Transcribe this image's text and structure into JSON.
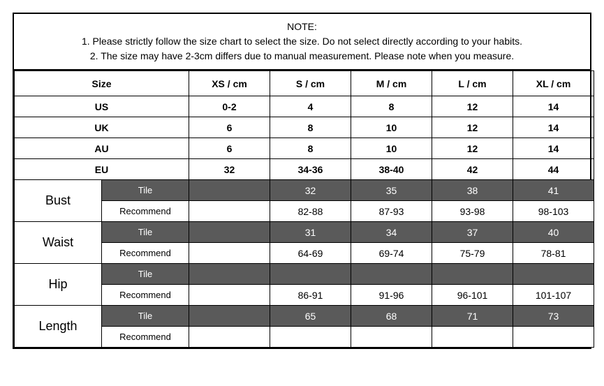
{
  "note": {
    "title": "NOTE:",
    "line1": "1. Please strictly follow the size chart  to select the size. Do not select directly according to your habits.",
    "line2": "2. The size may have 2-3cm differs due to manual measurement. Please note when you measure."
  },
  "headers": {
    "size": "Size",
    "cols": [
      "XS / cm",
      "S / cm",
      "M / cm",
      "L / cm",
      "XL / cm"
    ]
  },
  "regions": [
    {
      "label": "US",
      "values": [
        "0-2",
        "4",
        "8",
        "12",
        "14"
      ]
    },
    {
      "label": "UK",
      "values": [
        "6",
        "8",
        "10",
        "12",
        "14"
      ]
    },
    {
      "label": "AU",
      "values": [
        "6",
        "8",
        "10",
        "12",
        "14"
      ]
    },
    {
      "label": "EU",
      "values": [
        "32",
        "34-36",
        "38-40",
        "42",
        "44"
      ]
    }
  ],
  "measurements": [
    {
      "label": "Bust",
      "tile": [
        "",
        "32",
        "35",
        "38",
        "41"
      ],
      "recommend": [
        "",
        "82-88",
        "87-93",
        "93-98",
        "98-103"
      ]
    },
    {
      "label": "Waist",
      "tile": [
        "",
        "31",
        "34",
        "37",
        "40"
      ],
      "recommend": [
        "",
        "64-69",
        "69-74",
        "75-79",
        "78-81"
      ]
    },
    {
      "label": "Hip",
      "tile": [
        "",
        "",
        "",
        "",
        ""
      ],
      "recommend": [
        "",
        "86-91",
        "91-96",
        "96-101",
        "101-107"
      ]
    },
    {
      "label": "Length",
      "tile": [
        "",
        "65",
        "68",
        "71",
        "73"
      ],
      "recommend": [
        "",
        "",
        "",
        "",
        ""
      ]
    }
  ],
  "subLabels": {
    "tile": "Tile",
    "recommend": "Recommend"
  },
  "colors": {
    "darkBg": "#5a5a5a",
    "darkText": "#ffffff",
    "border": "#000000",
    "pageBg": "#ffffff"
  }
}
